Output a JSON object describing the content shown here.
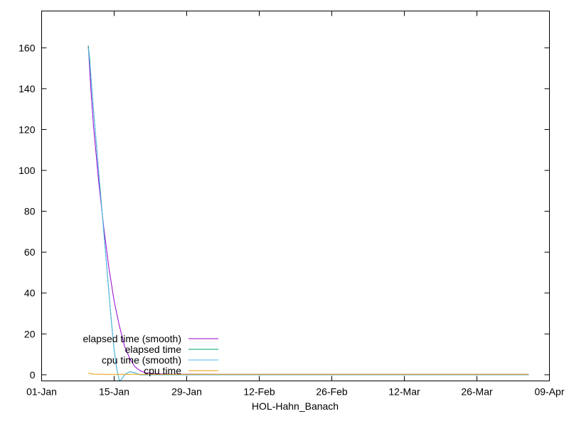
{
  "chart_data": {
    "type": "line",
    "title": "",
    "xlabel": "HOL-Hahn_Banach",
    "ylabel": "",
    "x_ticks": [
      "01-Jan",
      "15-Jan",
      "29-Jan",
      "12-Feb",
      "26-Feb",
      "12-Mar",
      "26-Mar",
      "09-Apr"
    ],
    "y_ticks": [
      0,
      20,
      40,
      60,
      80,
      100,
      120,
      140,
      160
    ],
    "xlim": [
      0,
      98
    ],
    "ylim": [
      -3,
      178
    ],
    "legend_position": "bottom-left",
    "grid": false,
    "series": [
      {
        "name": "elapsed time (smooth)",
        "color": "#9400d3",
        "points": [
          [
            9,
            161
          ],
          [
            9.5,
            140
          ],
          [
            10,
            122
          ],
          [
            11,
            95
          ],
          [
            12,
            72
          ],
          [
            13,
            52
          ],
          [
            14,
            36
          ],
          [
            15,
            24
          ],
          [
            16,
            14
          ],
          [
            17,
            8
          ],
          [
            18,
            4
          ],
          [
            19,
            2
          ],
          [
            20,
            1
          ],
          [
            22,
            0.5
          ],
          [
            25,
            0.3
          ],
          [
            35,
            0.2
          ],
          [
            50,
            0.2
          ],
          [
            70,
            0.2
          ],
          [
            94,
            0.2
          ]
        ]
      },
      {
        "name": "elapsed time",
        "color": "#009e73",
        "points": [
          [
            9,
            161
          ],
          [
            9.3,
            154
          ],
          [
            9.5,
            146
          ],
          [
            10,
            130
          ],
          [
            11,
            100
          ],
          [
            12,
            70
          ],
          [
            13,
            40
          ],
          [
            13.5,
            25
          ],
          [
            14,
            12
          ],
          [
            14.5,
            3
          ],
          [
            15,
            -3
          ],
          [
            15.5,
            -2
          ],
          [
            16,
            0
          ],
          [
            17,
            1.5
          ],
          [
            18,
            1
          ],
          [
            19,
            0
          ],
          [
            22,
            0
          ],
          [
            30,
            0
          ],
          [
            50,
            0
          ],
          [
            94,
            0
          ]
        ]
      },
      {
        "name": "cpu time (smooth)",
        "color": "#56b4e9",
        "points": [
          [
            9,
            160
          ],
          [
            9.5,
            147
          ],
          [
            10,
            130
          ],
          [
            11,
            100
          ],
          [
            12,
            70
          ],
          [
            13,
            40
          ],
          [
            13.5,
            25
          ],
          [
            14,
            12
          ],
          [
            14.5,
            3
          ],
          [
            15,
            -3
          ],
          [
            15.5,
            -2
          ],
          [
            16,
            0
          ],
          [
            17,
            1.5
          ],
          [
            18,
            1
          ],
          [
            19,
            0
          ],
          [
            22,
            0
          ],
          [
            30,
            0
          ],
          [
            50,
            0
          ],
          [
            94,
            0
          ]
        ]
      },
      {
        "name": "cpu time",
        "color": "#e69f00",
        "points": [
          [
            9,
            0.8
          ],
          [
            10,
            0.3
          ],
          [
            12,
            0.2
          ],
          [
            20,
            0.2
          ],
          [
            40,
            0.2
          ],
          [
            60,
            0.2
          ],
          [
            80,
            0.2
          ],
          [
            94,
            0.2
          ]
        ]
      }
    ]
  }
}
